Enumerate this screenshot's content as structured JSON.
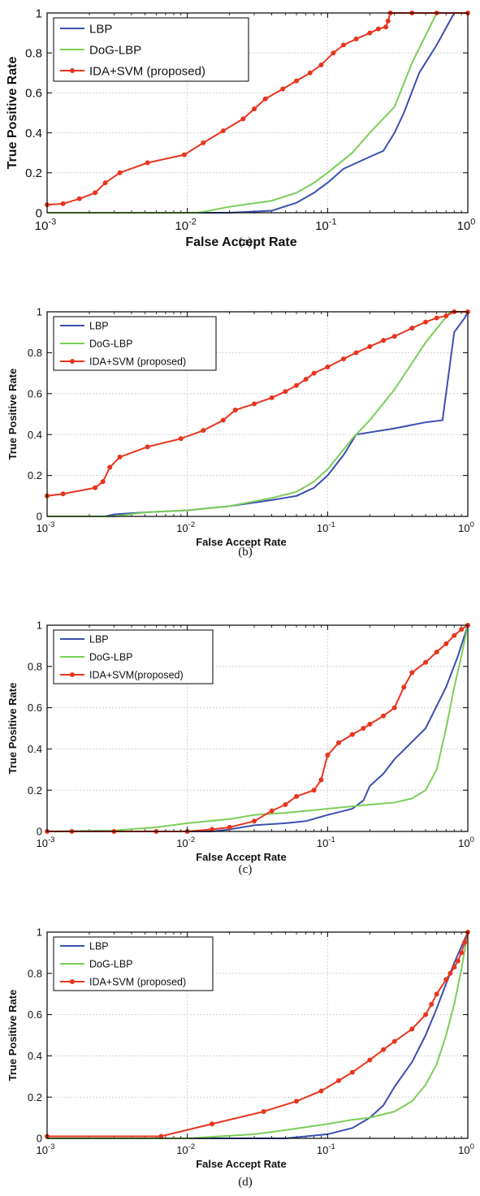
{
  "colors": {
    "LBP": "#3a4fb0",
    "DoG-LBP": "#7ccd58",
    "IDA+SVM": "#e8351e",
    "grid": "#d0d0d0"
  },
  "chart_data": [
    {
      "type": "line",
      "caption": "(a)",
      "xlabel": "False Accept Rate",
      "ylabel": "True Positive Rate",
      "xscale": "log",
      "xlim": [
        0.001,
        1
      ],
      "ylim": [
        0,
        1
      ],
      "xticks": [
        0.001,
        0.01,
        0.1,
        1
      ],
      "xtick_base": "10",
      "xtick_exponents": [
        "-3",
        "-2",
        "-1",
        "0"
      ],
      "yticks": [
        "0",
        "0.2",
        "0.4",
        "0.6",
        "0.8",
        "1"
      ],
      "grid": true,
      "legend_position": "top-left",
      "series": [
        {
          "name": "LBP",
          "color": "#3a4fb0",
          "markers": false,
          "points": [
            [
              0.001,
              0
            ],
            [
              0.01,
              0
            ],
            [
              0.02,
              0
            ],
            [
              0.04,
              0.01
            ],
            [
              0.06,
              0.05
            ],
            [
              0.08,
              0.1
            ],
            [
              0.1,
              0.15
            ],
            [
              0.13,
              0.22
            ],
            [
              0.2,
              0.28
            ],
            [
              0.25,
              0.31
            ],
            [
              0.3,
              0.4
            ],
            [
              0.35,
              0.5
            ],
            [
              0.45,
              0.7
            ],
            [
              0.6,
              0.84
            ],
            [
              0.8,
              1
            ],
            [
              1,
              1
            ]
          ]
        },
        {
          "name": "DoG-LBP",
          "color": "#7ccd58",
          "markers": false,
          "points": [
            [
              0.001,
              0
            ],
            [
              0.012,
              0
            ],
            [
              0.02,
              0.03
            ],
            [
              0.04,
              0.06
            ],
            [
              0.06,
              0.1
            ],
            [
              0.08,
              0.15
            ],
            [
              0.1,
              0.2
            ],
            [
              0.15,
              0.3
            ],
            [
              0.2,
              0.4
            ],
            [
              0.3,
              0.53
            ],
            [
              0.4,
              0.75
            ],
            [
              0.6,
              1
            ],
            [
              1,
              1
            ]
          ]
        },
        {
          "name": "IDA+SVM (proposed)",
          "color": "#e8351e",
          "markers": true,
          "points": [
            [
              0.001,
              0.04
            ],
            [
              0.0013,
              0.045
            ],
            [
              0.0017,
              0.07
            ],
            [
              0.0022,
              0.1
            ],
            [
              0.0026,
              0.15
            ],
            [
              0.0033,
              0.2
            ],
            [
              0.0052,
              0.25
            ],
            [
              0.0095,
              0.29
            ],
            [
              0.013,
              0.35
            ],
            [
              0.018,
              0.41
            ],
            [
              0.025,
              0.47
            ],
            [
              0.03,
              0.52
            ],
            [
              0.036,
              0.57
            ],
            [
              0.048,
              0.62
            ],
            [
              0.06,
              0.66
            ],
            [
              0.075,
              0.7
            ],
            [
              0.09,
              0.74
            ],
            [
              0.11,
              0.8
            ],
            [
              0.13,
              0.84
            ],
            [
              0.16,
              0.87
            ],
            [
              0.2,
              0.9
            ],
            [
              0.23,
              0.92
            ],
            [
              0.26,
              0.93
            ],
            [
              0.27,
              0.96
            ],
            [
              0.28,
              1
            ],
            [
              0.4,
              1
            ],
            [
              0.6,
              1
            ],
            [
              1,
              1
            ]
          ]
        }
      ]
    },
    {
      "type": "line",
      "caption": "(b)",
      "xlabel": "False Accept Rate",
      "ylabel": "True Positive Rate",
      "xscale": "log",
      "xlim": [
        0.001,
        1
      ],
      "ylim": [
        0,
        1
      ],
      "xticks": [
        0.001,
        0.01,
        0.1,
        1
      ],
      "xtick_base": "10",
      "xtick_exponents": [
        "-3",
        "-2",
        "-1",
        "0"
      ],
      "yticks": [
        "0",
        "0.2",
        "0.4",
        "0.6",
        "0.8",
        "1"
      ],
      "grid": true,
      "legend_position": "top-left",
      "series": [
        {
          "name": "LBP",
          "color": "#3a4fb0",
          "markers": false,
          "points": [
            [
              0.001,
              0
            ],
            [
              0.0026,
              0
            ],
            [
              0.003,
              0.01
            ],
            [
              0.005,
              0.02
            ],
            [
              0.01,
              0.03
            ],
            [
              0.02,
              0.05
            ],
            [
              0.04,
              0.08
            ],
            [
              0.06,
              0.1
            ],
            [
              0.08,
              0.14
            ],
            [
              0.1,
              0.2
            ],
            [
              0.13,
              0.3
            ],
            [
              0.16,
              0.4
            ],
            [
              0.3,
              0.43
            ],
            [
              0.5,
              0.46
            ],
            [
              0.66,
              0.47
            ],
            [
              0.8,
              0.9
            ],
            [
              0.95,
              0.97
            ],
            [
              1,
              1
            ]
          ]
        },
        {
          "name": "DoG-LBP",
          "color": "#7ccd58",
          "markers": false,
          "points": [
            [
              0.001,
              0
            ],
            [
              0.003,
              0
            ],
            [
              0.005,
              0.02
            ],
            [
              0.01,
              0.03
            ],
            [
              0.02,
              0.05
            ],
            [
              0.04,
              0.09
            ],
            [
              0.06,
              0.12
            ],
            [
              0.08,
              0.17
            ],
            [
              0.1,
              0.23
            ],
            [
              0.15,
              0.38
            ],
            [
              0.2,
              0.47
            ],
            [
              0.3,
              0.62
            ],
            [
              0.5,
              0.85
            ],
            [
              0.75,
              1
            ],
            [
              1,
              1
            ]
          ]
        },
        {
          "name": "IDA+SVM (proposed)",
          "color": "#e8351e",
          "markers": true,
          "points": [
            [
              0.001,
              0.1
            ],
            [
              0.0013,
              0.11
            ],
            [
              0.0022,
              0.14
            ],
            [
              0.0025,
              0.17
            ],
            [
              0.0028,
              0.24
            ],
            [
              0.0033,
              0.29
            ],
            [
              0.0052,
              0.34
            ],
            [
              0.009,
              0.38
            ],
            [
              0.013,
              0.42
            ],
            [
              0.018,
              0.47
            ],
            [
              0.022,
              0.52
            ],
            [
              0.03,
              0.55
            ],
            [
              0.04,
              0.58
            ],
            [
              0.05,
              0.61
            ],
            [
              0.06,
              0.64
            ],
            [
              0.07,
              0.67
            ],
            [
              0.08,
              0.7
            ],
            [
              0.1,
              0.73
            ],
            [
              0.13,
              0.77
            ],
            [
              0.16,
              0.8
            ],
            [
              0.2,
              0.83
            ],
            [
              0.25,
              0.86
            ],
            [
              0.3,
              0.88
            ],
            [
              0.4,
              0.92
            ],
            [
              0.5,
              0.95
            ],
            [
              0.6,
              0.97
            ],
            [
              0.7,
              0.98
            ],
            [
              0.8,
              1
            ],
            [
              1,
              1
            ]
          ]
        }
      ]
    },
    {
      "type": "line",
      "caption": "(c)",
      "xlabel": "False Accept Rate",
      "ylabel": "True Positive Rate",
      "xscale": "log",
      "xlim": [
        0.001,
        1
      ],
      "ylim": [
        0,
        1
      ],
      "xticks": [
        0.001,
        0.01,
        0.1,
        1
      ],
      "xtick_base": "10",
      "xtick_exponents": [
        "-3",
        "-2",
        "-1",
        "0"
      ],
      "yticks": [
        "0",
        "0.2",
        "0.4",
        "0.6",
        "0.8",
        "1"
      ],
      "grid": true,
      "legend_position": "top-left",
      "series": [
        {
          "name": "LBP",
          "color": "#3a4fb0",
          "markers": false,
          "points": [
            [
              0.001,
              0
            ],
            [
              0.015,
              0
            ],
            [
              0.02,
              0.01
            ],
            [
              0.03,
              0.03
            ],
            [
              0.05,
              0.04
            ],
            [
              0.07,
              0.05
            ],
            [
              0.1,
              0.08
            ],
            [
              0.15,
              0.11
            ],
            [
              0.18,
              0.15
            ],
            [
              0.2,
              0.22
            ],
            [
              0.25,
              0.28
            ],
            [
              0.3,
              0.35
            ],
            [
              0.5,
              0.5
            ],
            [
              0.7,
              0.7
            ],
            [
              0.85,
              0.85
            ],
            [
              1,
              1
            ]
          ]
        },
        {
          "name": "DoG-LBP",
          "color": "#7ccd58",
          "markers": false,
          "points": [
            [
              0.001,
              0
            ],
            [
              0.003,
              0.005
            ],
            [
              0.006,
              0.02
            ],
            [
              0.01,
              0.04
            ],
            [
              0.02,
              0.06
            ],
            [
              0.03,
              0.08
            ],
            [
              0.05,
              0.09
            ],
            [
              0.1,
              0.11
            ],
            [
              0.2,
              0.13
            ],
            [
              0.3,
              0.14
            ],
            [
              0.4,
              0.16
            ],
            [
              0.5,
              0.2
            ],
            [
              0.6,
              0.3
            ],
            [
              0.7,
              0.5
            ],
            [
              0.8,
              0.7
            ],
            [
              0.9,
              0.85
            ],
            [
              1,
              1
            ]
          ]
        },
        {
          "name": "IDA+SVM(proposed)",
          "color": "#e8351e",
          "markers": true,
          "points": [
            [
              0.001,
              0
            ],
            [
              0.0015,
              0
            ],
            [
              0.003,
              0
            ],
            [
              0.006,
              0
            ],
            [
              0.01,
              0
            ],
            [
              0.015,
              0.01
            ],
            [
              0.02,
              0.02
            ],
            [
              0.03,
              0.05
            ],
            [
              0.04,
              0.1
            ],
            [
              0.05,
              0.13
            ],
            [
              0.06,
              0.17
            ],
            [
              0.08,
              0.2
            ],
            [
              0.09,
              0.25
            ],
            [
              0.1,
              0.37
            ],
            [
              0.12,
              0.43
            ],
            [
              0.15,
              0.47
            ],
            [
              0.18,
              0.5
            ],
            [
              0.2,
              0.52
            ],
            [
              0.25,
              0.56
            ],
            [
              0.3,
              0.6
            ],
            [
              0.35,
              0.7
            ],
            [
              0.4,
              0.77
            ],
            [
              0.5,
              0.82
            ],
            [
              0.6,
              0.87
            ],
            [
              0.7,
              0.91
            ],
            [
              0.8,
              0.95
            ],
            [
              0.9,
              0.98
            ],
            [
              1,
              1
            ]
          ]
        }
      ]
    },
    {
      "type": "line",
      "caption": "(d)",
      "xlabel": "False Accept Rate",
      "ylabel": "True Positive Rate",
      "xscale": "log",
      "xlim": [
        0.001,
        1
      ],
      "ylim": [
        0,
        1
      ],
      "xticks": [
        0.001,
        0.01,
        0.1,
        1
      ],
      "xtick_base": "10",
      "xtick_exponents": [
        "-3",
        "-2",
        "-1",
        "0"
      ],
      "yticks": [
        "0",
        "0.2",
        "0.4",
        "0.6",
        "0.8",
        "1"
      ],
      "grid": true,
      "legend_position": "top-left",
      "series": [
        {
          "name": "LBP",
          "color": "#3a4fb0",
          "markers": false,
          "points": [
            [
              0.001,
              0
            ],
            [
              0.05,
              0
            ],
            [
              0.1,
              0.02
            ],
            [
              0.15,
              0.05
            ],
            [
              0.2,
              0.1
            ],
            [
              0.25,
              0.16
            ],
            [
              0.3,
              0.25
            ],
            [
              0.4,
              0.37
            ],
            [
              0.5,
              0.5
            ],
            [
              0.6,
              0.63
            ],
            [
              0.7,
              0.75
            ],
            [
              0.8,
              0.85
            ],
            [
              0.9,
              0.93
            ],
            [
              1,
              1
            ]
          ]
        },
        {
          "name": "DoG-LBP",
          "color": "#7ccd58",
          "markers": false,
          "points": [
            [
              0.001,
              0
            ],
            [
              0.01,
              0
            ],
            [
              0.03,
              0.02
            ],
            [
              0.05,
              0.04
            ],
            [
              0.08,
              0.06
            ],
            [
              0.1,
              0.07
            ],
            [
              0.15,
              0.09
            ],
            [
              0.2,
              0.1
            ],
            [
              0.3,
              0.13
            ],
            [
              0.4,
              0.18
            ],
            [
              0.5,
              0.26
            ],
            [
              0.6,
              0.36
            ],
            [
              0.7,
              0.5
            ],
            [
              0.8,
              0.65
            ],
            [
              0.9,
              0.82
            ],
            [
              1,
              1
            ]
          ]
        },
        {
          "name": "IDA+SVM (proposed)",
          "color": "#e8351e",
          "markers": true,
          "points": [
            [
              0.001,
              0.01
            ],
            [
              0.0065,
              0.01
            ],
            [
              0.015,
              0.07
            ],
            [
              0.035,
              0.13
            ],
            [
              0.06,
              0.18
            ],
            [
              0.09,
              0.23
            ],
            [
              0.12,
              0.28
            ],
            [
              0.15,
              0.32
            ],
            [
              0.2,
              0.38
            ],
            [
              0.25,
              0.43
            ],
            [
              0.3,
              0.47
            ],
            [
              0.4,
              0.53
            ],
            [
              0.5,
              0.6
            ],
            [
              0.55,
              0.65
            ],
            [
              0.6,
              0.7
            ],
            [
              0.7,
              0.77
            ],
            [
              0.75,
              0.8
            ],
            [
              0.8,
              0.83
            ],
            [
              0.85,
              0.86
            ],
            [
              0.9,
              0.9
            ],
            [
              0.95,
              0.95
            ],
            [
              1,
              1
            ]
          ]
        }
      ]
    }
  ]
}
